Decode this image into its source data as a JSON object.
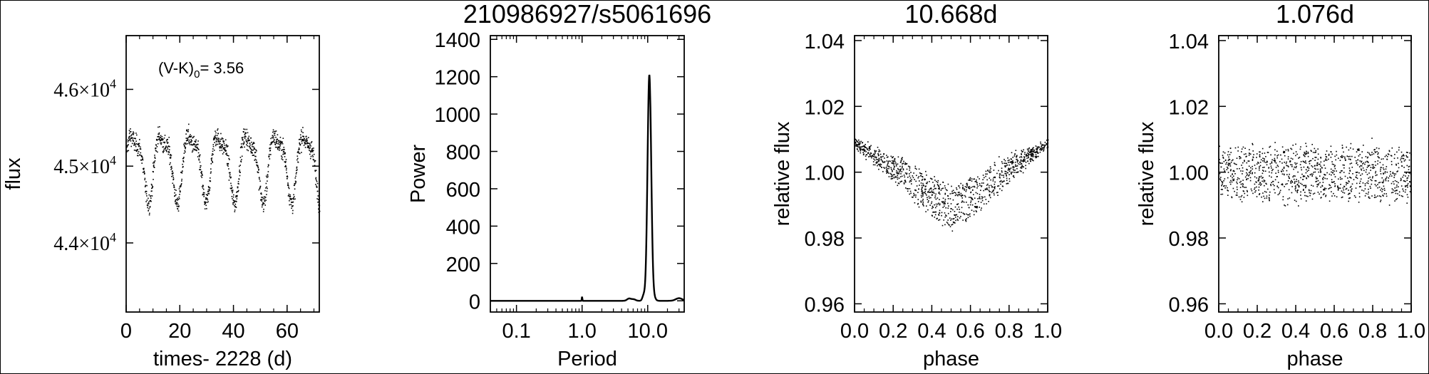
{
  "chart_data": [
    {
      "type": "scatter",
      "title": "",
      "xlabel": "times- 2228 (d)",
      "ylabel": "flux",
      "annotation": {
        "prefix": "(V-K)",
        "sub": "0",
        "suffix": "= 3.56"
      },
      "xlim": [
        0,
        72
      ],
      "ylim": [
        43100,
        46700
      ],
      "xticks": [
        0,
        20,
        40,
        60
      ],
      "xtick_labels": [
        "0",
        "20",
        "40",
        "60"
      ],
      "yticks": [
        44000,
        45000,
        46000
      ],
      "ytick_labels": [
        {
          "m": "4.4",
          "e": "4"
        },
        {
          "m": "4.5",
          "e": "4"
        },
        {
          "m": "4.6",
          "e": "4"
        }
      ],
      "series": [
        {
          "period": 10.668,
          "amplitude": 400,
          "mean": 45050,
          "noise": 90,
          "t0": 72,
          "n": 1100
        }
      ]
    },
    {
      "type": "line",
      "title": "210986927/s5061696",
      "xlabel": "Period",
      "ylabel": "Power",
      "xscale": "log",
      "xlim": [
        0.04,
        36
      ],
      "ylim": [
        -60,
        1420
      ],
      "xticks": [
        0.1,
        1.0,
        10.0
      ],
      "xtick_labels": [
        "0.1",
        "1.0",
        "10.0"
      ],
      "yticks": [
        0,
        200,
        400,
        600,
        800,
        1000,
        1200,
        1400
      ],
      "ytick_labels": [
        "0",
        "200",
        "400",
        "600",
        "800",
        "1000",
        "1200",
        "1400"
      ],
      "peaks": [
        {
          "x": 10.6,
          "y": 1210,
          "w": 0.028
        },
        {
          "x": 8.7,
          "y": 30,
          "w": 0.02
        },
        {
          "x": 12.5,
          "y": 15,
          "w": 0.025
        },
        {
          "x": 5.2,
          "y": 12,
          "w": 0.03
        },
        {
          "x": 6.1,
          "y": 8,
          "w": 0.03
        },
        {
          "x": 1.0,
          "y": 22,
          "w": 0.004
        },
        {
          "x": 30.0,
          "y": 14,
          "w": 0.05
        }
      ]
    },
    {
      "type": "scatter",
      "title": "10.668d",
      "xlabel": "phase",
      "ylabel": "relative flux",
      "xlim": [
        0,
        1.0
      ],
      "ylim": [
        0.9575,
        1.0415
      ],
      "xticks": [
        0.0,
        0.2,
        0.4,
        0.6,
        0.8,
        1.0
      ],
      "xtick_labels": [
        "0.0",
        "0.2",
        "0.4",
        "0.6",
        "0.8",
        "1.0"
      ],
      "yticks": [
        0.96,
        0.98,
        1.0,
        1.02,
        1.04
      ],
      "ytick_labels": [
        "0.96",
        "0.98",
        "1.00",
        "1.02",
        "1.04"
      ],
      "series": [
        {
          "center_phase": 0.5,
          "depth": 0.02,
          "top": 1.009,
          "noise": 0.002,
          "n": 1100
        }
      ]
    },
    {
      "type": "scatter",
      "title": "1.076d",
      "xlabel": "phase",
      "ylabel": "relative flux",
      "xlim": [
        0,
        1.0
      ],
      "ylim": [
        0.9575,
        1.0415
      ],
      "xticks": [
        0.0,
        0.2,
        0.4,
        0.6,
        0.8,
        1.0
      ],
      "xtick_labels": [
        "0.0",
        "0.2",
        "0.4",
        "0.6",
        "0.8",
        "1.0"
      ],
      "yticks": [
        0.96,
        0.98,
        1.0,
        1.02,
        1.04
      ],
      "ytick_labels": [
        "0.96",
        "0.98",
        "1.00",
        "1.02",
        "1.04"
      ],
      "series": [
        {
          "center": 1.0,
          "spread": 0.008,
          "n": 1100
        }
      ]
    }
  ]
}
